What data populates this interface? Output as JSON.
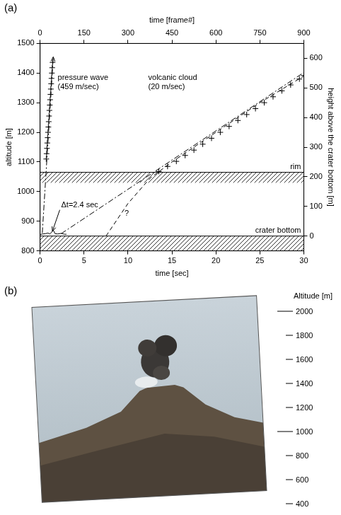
{
  "chart_data": {
    "label": "(a)",
    "type": "scatter",
    "xlabel": "time [sec]",
    "x2label": "time [frame#]",
    "ylabel": "altitude [m]",
    "y2label": "height above the crater bottom [m]",
    "xlim": [
      0,
      30
    ],
    "xticks": [
      0,
      5,
      10,
      15,
      20,
      25,
      30
    ],
    "x2lim": [
      0,
      900
    ],
    "x2ticks": [
      0,
      150,
      300,
      450,
      600,
      750,
      900
    ],
    "ylim": [
      800,
      1500
    ],
    "yticks": [
      800,
      900,
      1000,
      1100,
      1200,
      1300,
      1400,
      1500
    ],
    "y2lim": [
      -50,
      650
    ],
    "y2ticks": [
      0,
      100,
      200,
      300,
      400,
      500,
      600
    ],
    "grid": false,
    "series": [
      {
        "color": "#000000",
        "marker": "cross",
        "line_style": "none",
        "x": [
          0.7,
          0.74,
          0.78,
          0.82,
          0.86,
          0.9,
          0.94,
          0.98,
          1.02,
          1.06,
          1.1,
          1.14,
          1.18,
          1.22,
          1.26,
          1.3,
          1.34,
          1.38,
          1.42
        ],
        "values": [
          1110,
          1128,
          1146,
          1164,
          1182,
          1200,
          1218,
          1236,
          1255,
          1274,
          1292,
          1310,
          1328,
          1346,
          1364,
          1382,
          1400,
          1418,
          1436
        ]
      },
      {
        "color": "#000000",
        "marker": "arrow",
        "line_style": "dashdot",
        "x": [
          0.25,
          1.5
        ],
        "values": [
          860,
          1455
        ]
      },
      {
        "color": "#000000",
        "marker": "none",
        "line_style": "solid",
        "x": [
          0,
          0.3,
          0.6,
          0.9,
          1.1,
          1.3,
          1.5,
          1.7,
          2.0,
          2.4,
          2.8,
          3.0
        ],
        "values": [
          855,
          857,
          858,
          860,
          857,
          862,
          870,
          858,
          857,
          859,
          856,
          856
        ]
      },
      {
        "color": "#000000",
        "marker": "cross",
        "line_style": "none",
        "x": [
          13.5,
          14.5,
          15.5,
          16.5,
          17.5,
          18.5,
          19.5,
          20.5,
          21.5,
          22.5,
          23.5,
          24.5,
          25.5,
          26.5,
          27.5,
          28.5,
          29.5,
          30
        ],
        "values": [
          1068,
          1085,
          1102,
          1122,
          1140,
          1160,
          1180,
          1200,
          1220,
          1240,
          1260,
          1280,
          1300,
          1320,
          1340,
          1360,
          1380,
          1392
        ]
      },
      {
        "color": "#000000",
        "marker": "none",
        "line_style": "dashdot",
        "x": [
          2.4,
          30
        ],
        "values": [
          858,
          1402
        ]
      },
      {
        "color": "#000000",
        "marker": "none",
        "line_style": "dashed",
        "x": [
          7.5,
          10,
          12.5,
          15,
          20,
          25,
          30
        ],
        "values": [
          850,
          960,
          1045,
          1100,
          1200,
          1300,
          1390
        ]
      }
    ],
    "regions": [
      {
        "text": "rim",
        "ylim": [
          1030,
          1065
        ]
      },
      {
        "text": "crater bottom",
        "ylim": [
          800,
          850
        ]
      }
    ],
    "annotations": [
      {
        "text": [
          "pressure wave",
          "(459 m/sec)"
        ],
        "x": 2.0,
        "y": 1385
      },
      {
        "text": [
          "volcanic cloud",
          "(20 m/sec)"
        ],
        "x": 12.3,
        "y": 1385
      },
      {
        "text": [
          "Δt=2.4 sec"
        ],
        "x": 2.4,
        "y": 955,
        "arrow_to": [
          1.4,
          866
        ]
      },
      {
        "text": [
          "?"
        ],
        "x": 9.6,
        "y": 925
      }
    ]
  },
  "photo": {
    "label": "(b)",
    "scale_title": "Altitude [m]",
    "scale_ticks": [
      2000,
      1800,
      1600,
      1400,
      1200,
      1000,
      800,
      600,
      400
    ]
  }
}
